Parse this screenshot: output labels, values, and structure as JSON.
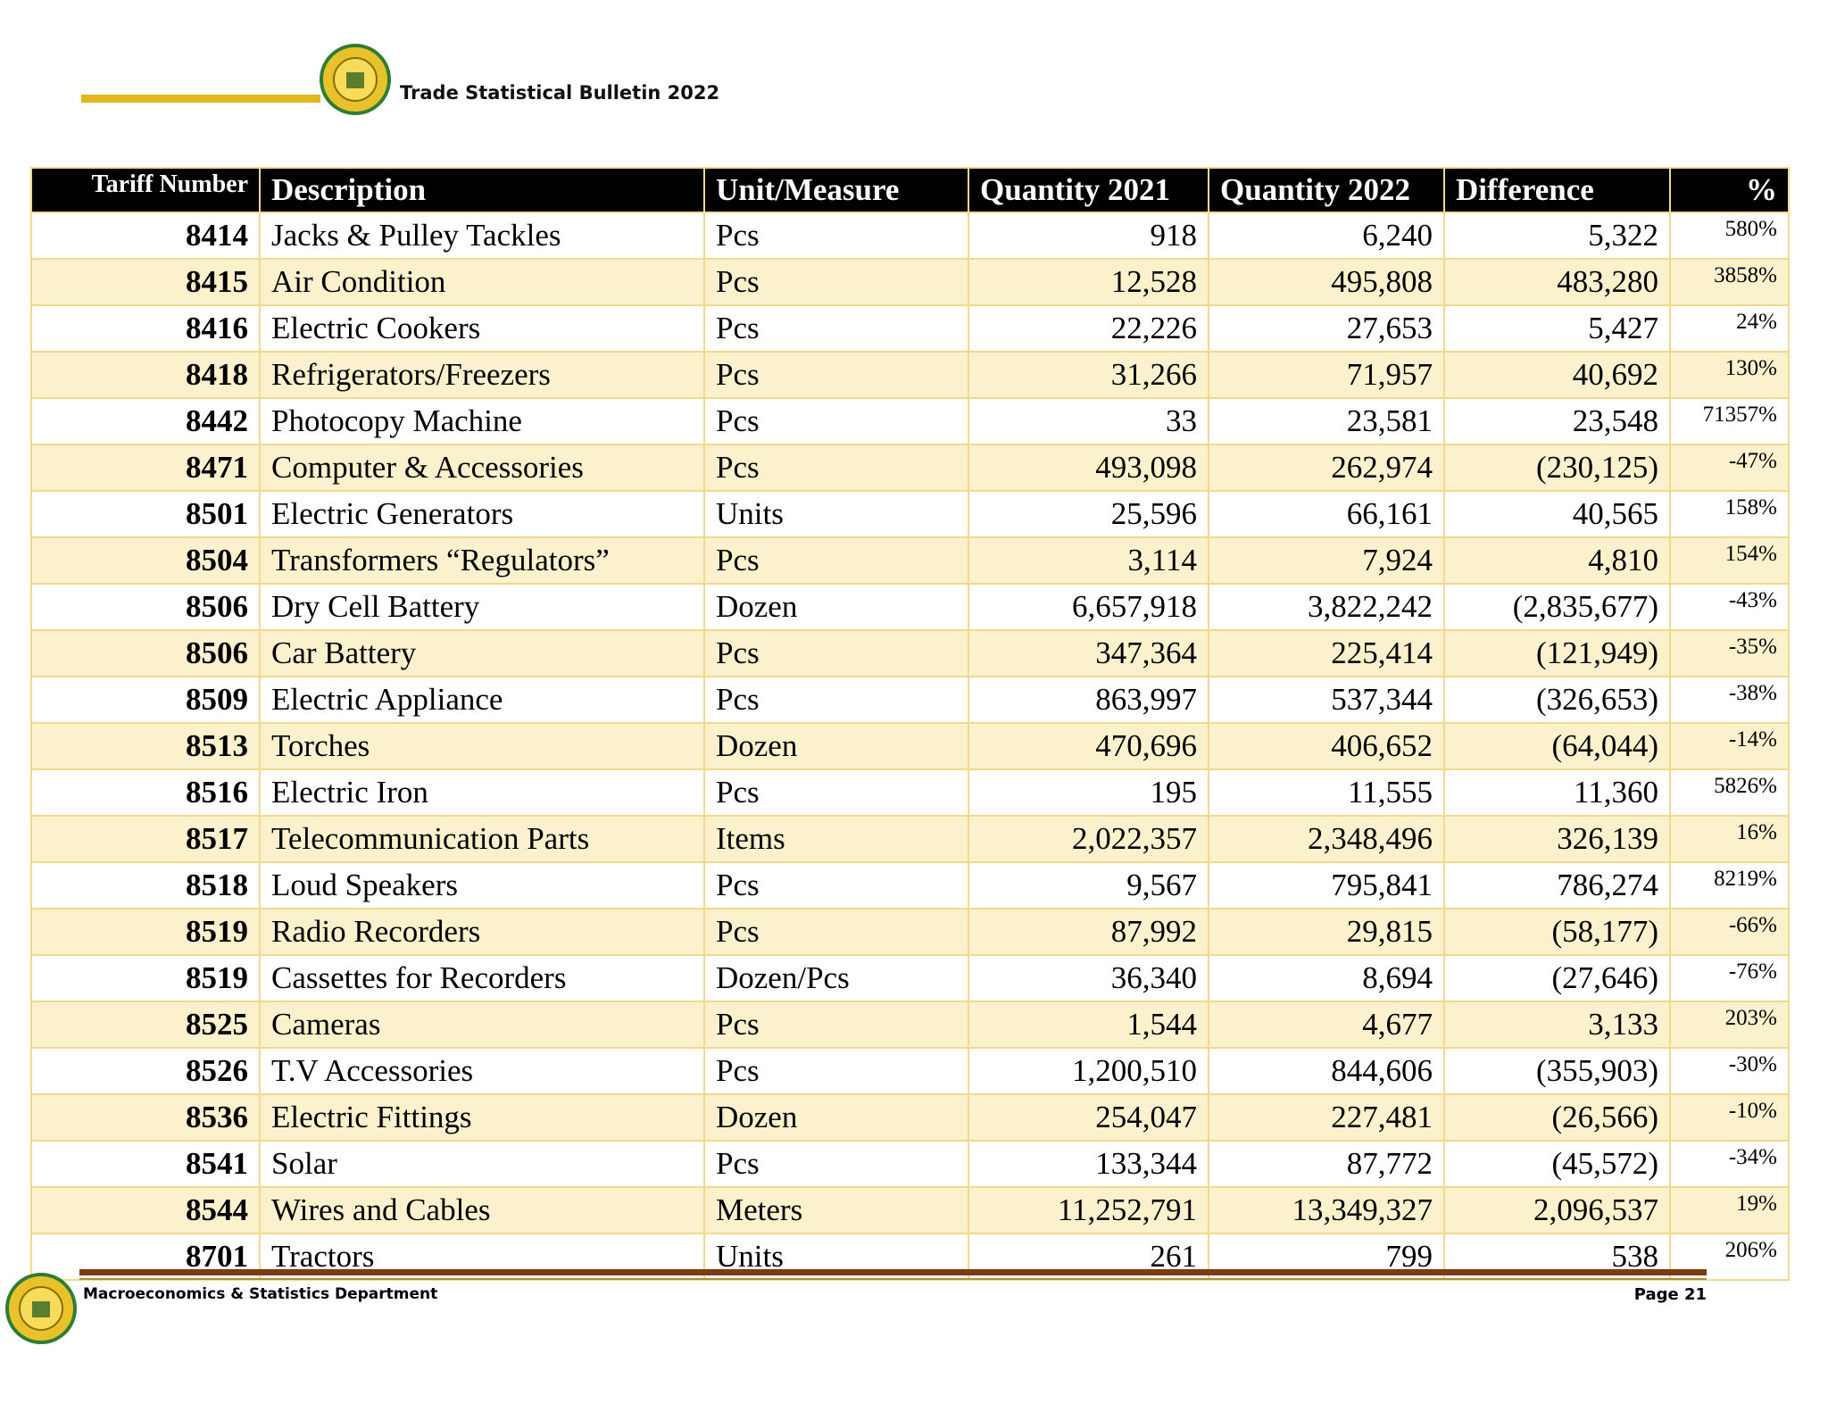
{
  "header": {
    "title": "Trade Statistical Bulletin 2022"
  },
  "table": {
    "columns": [
      "Tariff Number",
      "Description",
      "Unit/Measure",
      "Quantity 2021",
      "Quantity 2022",
      "Difference",
      "%"
    ],
    "rows": [
      [
        "8414",
        "Jacks & Pulley Tackles",
        "Pcs",
        "918",
        "6,240",
        "5,322",
        "580%"
      ],
      [
        "8415",
        "Air Condition",
        "Pcs",
        "12,528",
        "495,808",
        "483,280",
        "3858%"
      ],
      [
        "8416",
        "Electric Cookers",
        "Pcs",
        "22,226",
        "27,653",
        "5,427",
        "24%"
      ],
      [
        "8418",
        "Refrigerators/Freezers",
        "Pcs",
        "31,266",
        "71,957",
        "40,692",
        "130%"
      ],
      [
        "8442",
        "Photocopy Machine",
        "Pcs",
        "33",
        "23,581",
        "23,548",
        "71357%"
      ],
      [
        "8471",
        "Computer & Accessories",
        "Pcs",
        "493,098",
        "262,974",
        "(230,125)",
        "-47%"
      ],
      [
        "8501",
        "Electric Generators",
        "Units",
        "25,596",
        "66,161",
        "40,565",
        "158%"
      ],
      [
        "8504",
        "Transformers “Regulators”",
        "Pcs",
        "3,114",
        "7,924",
        "4,810",
        "154%"
      ],
      [
        "8506",
        "Dry Cell Battery",
        "Dozen",
        "6,657,918",
        "3,822,242",
        "(2,835,677)",
        "-43%"
      ],
      [
        "8506",
        "Car Battery",
        "Pcs",
        "347,364",
        "225,414",
        "(121,949)",
        "-35%"
      ],
      [
        "8509",
        "Electric Appliance",
        "Pcs",
        "863,997",
        "537,344",
        "(326,653)",
        "-38%"
      ],
      [
        "8513",
        "Torches",
        "Dozen",
        "470,696",
        "406,652",
        "(64,044)",
        "-14%"
      ],
      [
        "8516",
        "Electric Iron",
        "Pcs",
        "195",
        "11,555",
        "11,360",
        "5826%"
      ],
      [
        "8517",
        "Telecommunication Parts",
        "Items",
        "2,022,357",
        "2,348,496",
        "326,139",
        "16%"
      ],
      [
        "8518",
        "Loud Speakers",
        "Pcs",
        "9,567",
        "795,841",
        "786,274",
        "8219%"
      ],
      [
        "8519",
        "Radio Recorders",
        "Pcs",
        "87,992",
        "29,815",
        "(58,177)",
        "-66%"
      ],
      [
        "8519",
        "Cassettes for Recorders",
        "Dozen/Pcs",
        "36,340",
        "8,694",
        "(27,646)",
        "-76%"
      ],
      [
        "8525",
        "Cameras",
        "Pcs",
        "1,544",
        "4,677",
        "3,133",
        "203%"
      ],
      [
        "8526",
        "T.V Accessories",
        "Pcs",
        "1,200,510",
        "844,606",
        "(355,903)",
        "-30%"
      ],
      [
        "8536",
        "Electric Fittings",
        "Dozen",
        "254,047",
        "227,481",
        "(26,566)",
        "-10%"
      ],
      [
        "8541",
        "Solar",
        "Pcs",
        "133,344",
        "87,772",
        "(45,572)",
        "-34%"
      ],
      [
        "8544",
        "Wires and Cables",
        "Meters",
        "11,252,791",
        "13,349,327",
        "2,096,537",
        "19%"
      ],
      [
        "8701",
        "Tractors",
        "Units",
        "261",
        "799",
        "538",
        "206%"
      ]
    ]
  },
  "footer": {
    "department": "Macroeconomics & Statistics Department",
    "page": "Page 21"
  }
}
